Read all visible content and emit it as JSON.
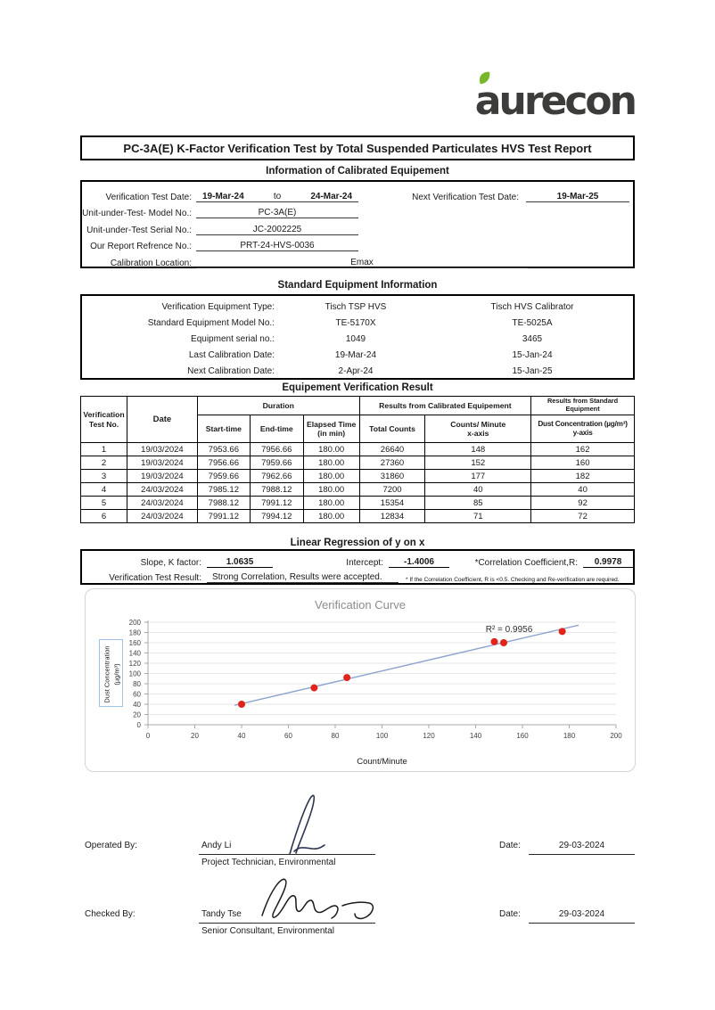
{
  "logo": {
    "text": "aurecon",
    "leaf_color": "#76b82a",
    "text_color": "#3c3c3b"
  },
  "title": "PC-3A(E) K-Factor Verification Test by Total Suspended Particulates HVS Test Report",
  "info": {
    "heading": "Information of Calibrated Equipement",
    "test_date_label": "Verification Test Date:",
    "date_from": "19-Mar-24",
    "to": "to",
    "date_to": "24-Mar-24",
    "next_date_label": "Next Verification Test Date:",
    "next_date": "19-Mar-25",
    "model_label": "Unit-under-Test- Model No.:",
    "model": "PC-3A(E)",
    "serial_label": "Unit-under-Test Serial No.:",
    "serial": "JC-2002225",
    "report_label": "Our Report Refrence No.:",
    "report": "PRT-24-HVS-0036",
    "location_label": "Calibration Location:",
    "location": "Emax"
  },
  "standard": {
    "heading": "Standard Equipment Information",
    "rows": [
      {
        "label": "Verification Equipment Type:",
        "col1": "Tisch TSP HVS",
        "col2": "Tisch HVS Calibrator"
      },
      {
        "label": "Standard Equipment Model No.:",
        "col1": "TE-5170X",
        "col2": "TE-5025A"
      },
      {
        "label": "Equipment serial no.:",
        "col1": "1049",
        "col2": "3465"
      },
      {
        "label": "Last Calibration Date:",
        "col1": "19-Mar-24",
        "col2": "15-Jan-24"
      },
      {
        "label": "Next Calibration Date:",
        "col1": "2-Apr-24",
        "col2": "15-Jan-25"
      }
    ]
  },
  "results": {
    "heading": "Equipement Verification Result",
    "headers": {
      "test_no": "Verification\nTest No.",
      "date": "Date",
      "duration": "Duration",
      "start": "Start-time",
      "end": "End-time",
      "elapsed": "Elapsed Time\n(in min)",
      "calibrated": "Results from Calibrated Equipement",
      "total_counts": "Total Counts",
      "counts_min": "Counts/ Minute\nx-axis",
      "standard": "Results from Standard Equipment",
      "dust": "Dust Concentration (µg/m³)\ny-axis"
    },
    "rows": [
      [
        "1",
        "19/03/2024",
        "7953.66",
        "7956.66",
        "180.00",
        "26640",
        "148",
        "162"
      ],
      [
        "2",
        "19/03/2024",
        "7956.66",
        "7959.66",
        "180.00",
        "27360",
        "152",
        "160"
      ],
      [
        "3",
        "19/03/2024",
        "7959.66",
        "7962.66",
        "180.00",
        "31860",
        "177",
        "182"
      ],
      [
        "4",
        "24/03/2024",
        "7985.12",
        "7988.12",
        "180.00",
        "7200",
        "40",
        "40"
      ],
      [
        "5",
        "24/03/2024",
        "7988.12",
        "7991.12",
        "180.00",
        "15354",
        "85",
        "92"
      ],
      [
        "6",
        "24/03/2024",
        "7991.12",
        "7994.12",
        "180.00",
        "12834",
        "71",
        "72"
      ]
    ]
  },
  "regression": {
    "heading": "Linear Regression of y on x",
    "slope_label": "Slope, K factor:",
    "slope": "1.0635",
    "intercept_label": "Intercept:",
    "intercept": "-1.4006",
    "corr_label": "*Correlation Coefficient,R:",
    "corr": "0.9978",
    "result_label": "Verification Test Result:",
    "result": "Strong Correlation, Results were accepted.",
    "footnote": "* If the Correlation Coefficient, R is <0.5. Checking and Re-verification are required."
  },
  "chart_data": {
    "type": "scatter",
    "title": "Verification Curve",
    "xlabel": "Count/Minute",
    "ylabel": "Dust Concentration\n(µg/m³)",
    "points": [
      [
        40,
        40
      ],
      [
        71,
        72
      ],
      [
        85,
        92
      ],
      [
        148,
        162
      ],
      [
        152,
        160
      ],
      [
        177,
        182
      ]
    ],
    "trendline": {
      "slope": 1.0635,
      "intercept": -1.4006,
      "x_start": 37,
      "x_end": 184
    },
    "r2_label": "R² = 0.9956",
    "xlim": [
      0,
      200
    ],
    "ylim": [
      0,
      200
    ],
    "x_ticks": [
      0,
      20,
      40,
      60,
      80,
      100,
      120,
      140,
      160,
      180,
      200
    ],
    "y_ticks": [
      0,
      20,
      40,
      60,
      80,
      100,
      120,
      140,
      160,
      180,
      200
    ],
    "grid": "horizontal",
    "legend": "none",
    "point_color": "#e2231a",
    "line_color": "#8ea4ce"
  },
  "signoff": {
    "operated_label": "Operated By:",
    "operated_name": "Andy Li",
    "operated_title": "Project Technician, Environmental",
    "operated_date_label": "Date:",
    "operated_date": "29-03-2024",
    "checked_label": "Checked By:",
    "checked_name": "Tandy Tse",
    "checked_title": "Senior Consultant, Environmental",
    "checked_date_label": "Date:",
    "checked_date": "29-03-2024"
  }
}
